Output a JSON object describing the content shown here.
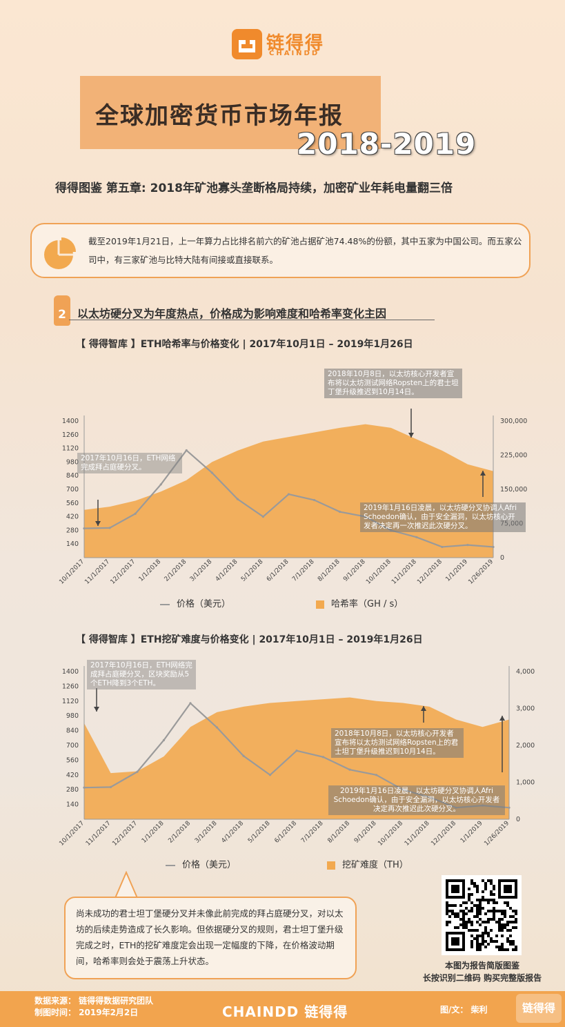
{
  "logo": {
    "cn": "链得得",
    "en": "CHAINDD"
  },
  "title": {
    "cn": "全球加密货币市场年报",
    "year": "2018-2019"
  },
  "subtitle": "得得图鉴   第五章: 2018年矿池寡头垄断格局持续，加密矿业年耗电量翻三倍",
  "summary": "截至2019年1月21日，上一年算力占比排名前六的矿池占据矿池74.48%的份额，其中五家为中国公司。而五家公司中，有三家矿池与比特大陆有间接或直接联系。",
  "section": {
    "num": "2",
    "title": "以太坊硬分叉为年度热点，价格成为影响难度和哈希率变化主因"
  },
  "chart1": {
    "title": "【 得得智库 】ETH哈希率与价格变化 | 2017年10月1日 – 2019年1月26日",
    "notes": [
      "2018年10月8日，以太坊核心开发者宣布将以太坊测试网络Ropsten上的君士坦丁堡升级推迟到10月14日。",
      "2017年10月16日，ETH网络完成拜占庭硬分叉。",
      "2019年1月16日凌晨，以太坊硬分叉协调人Afri Schoedon确认，由于安全漏洞，以太坊核心开发者决定再一次推迟此次硬分叉。"
    ],
    "legend_price": "价格（美元）",
    "legend_area": "哈希率（GH / s）"
  },
  "chart2": {
    "title": "【 得得智库 】ETH挖矿难度与价格变化 | 2017年10月1日 – 2019年1月26日",
    "notes": [
      "2017年10月16日，ETH网络完成拜占庭硬分叉，区块奖励从5个ETH降到3个ETH。",
      "2018年10月8日，以太坊核心开发者宣布将以太坊测试网络Ropsten上的君士坦丁堡升级推迟到10月14日。",
      "2019年1月16日凌晨，以太坊硬分叉协调人Afri Schoedon确认，由于安全漏洞，以太坊核心开发者决定再次推迟此次硬分叉。"
    ],
    "legend_price": "价格（美元）",
    "legend_area": "挖矿难度（TH）"
  },
  "bubble": "尚未成功的君士坦丁堡硬分叉并未像此前完成的拜占庭硬分叉，对以太坊的后续走势造成了长久影响。但依据硬分叉的规则，君士坦丁堡升级完成之时，ETH的挖矿难度定会出现一定幅度的下降，在价格波动期间，哈希率则会处于震荡上升状态。",
  "qr_caption": [
    "本图为报告简版图鉴",
    "长按识别二维码  购买完整版报告"
  ],
  "footer": {
    "source": "数据来源：  链得得数据研究团队",
    "date": "制图时间：  2019年2月2日",
    "brand": "CHAINDD 链得得",
    "author": "图/文： 柴利",
    "badge": "链得得"
  },
  "colors": {
    "accent": "#f08a2c",
    "area": "#f2a94f",
    "price": "#9a9a9a"
  },
  "chart_data": [
    {
      "type": "area",
      "title": "ETH哈希率与价格变化",
      "x_ticks": [
        "10/1/2017",
        "11/1/2017",
        "12/1/2017",
        "1/1/2018",
        "2/1/2018",
        "3/1/2018",
        "4/1/2018",
        "5/1/2018",
        "6/1/2018",
        "7/1/2018",
        "8/1/2018",
        "9/1/2018",
        "10/1/2018",
        "11/1/2018",
        "12/1/2018",
        "1/1/2019",
        "1/26/2019"
      ],
      "y_left_ticks": [
        140,
        280,
        420,
        560,
        700,
        840,
        980,
        1120,
        1260,
        1400
      ],
      "y_right_ticks": [
        "0",
        "75,000",
        "150,000",
        "225,000",
        "300,000"
      ],
      "ylim_left": [
        0,
        1400
      ],
      "ylim_right": [
        0,
        300000
      ],
      "series": [
        {
          "name": "哈希率（GH / s）",
          "axis": "right",
          "values": [
            105000,
            112000,
            125000,
            145000,
            170000,
            210000,
            235000,
            255000,
            265000,
            275000,
            285000,
            293000,
            285000,
            260000,
            235000,
            205000,
            190000
          ]
        },
        {
          "name": "价格（美元）",
          "axis": "left",
          "values": [
            300,
            305,
            450,
            750,
            1100,
            870,
            600,
            420,
            650,
            590,
            470,
            420,
            280,
            210,
            110,
            130,
            110
          ]
        }
      ]
    },
    {
      "type": "area",
      "title": "ETH挖矿难度与价格变化",
      "x_ticks": [
        "10/1/2017",
        "11/1/2017",
        "12/1/2017",
        "1/1/2018",
        "2/1/2018",
        "3/1/2018",
        "4/1/2018",
        "5/1/2018",
        "6/1/2018",
        "7/1/2018",
        "8/1/2018",
        "9/1/2018",
        "10/1/2018",
        "11/1/2018",
        "12/1/2018",
        "1/1/2019",
        "1/26/2019"
      ],
      "y_left_ticks": [
        140,
        280,
        420,
        560,
        700,
        840,
        980,
        1120,
        1260,
        1400
      ],
      "y_right_ticks": [
        "0",
        "1,000",
        "2,000",
        "3,000",
        "4,000"
      ],
      "ylim_left": [
        0,
        1400
      ],
      "ylim_right": [
        0,
        4000
      ],
      "series": [
        {
          "name": "挖矿难度（TH）",
          "axis": "right",
          "values": [
            2600,
            1250,
            1300,
            1700,
            2500,
            2900,
            3050,
            3150,
            3200,
            3250,
            3300,
            3200,
            3150,
            3050,
            2700,
            2500,
            2700
          ]
        },
        {
          "name": "价格（美元）",
          "axis": "left",
          "values": [
            300,
            305,
            450,
            750,
            1100,
            870,
            600,
            420,
            650,
            590,
            470,
            420,
            280,
            210,
            110,
            130,
            110
          ]
        }
      ]
    }
  ]
}
